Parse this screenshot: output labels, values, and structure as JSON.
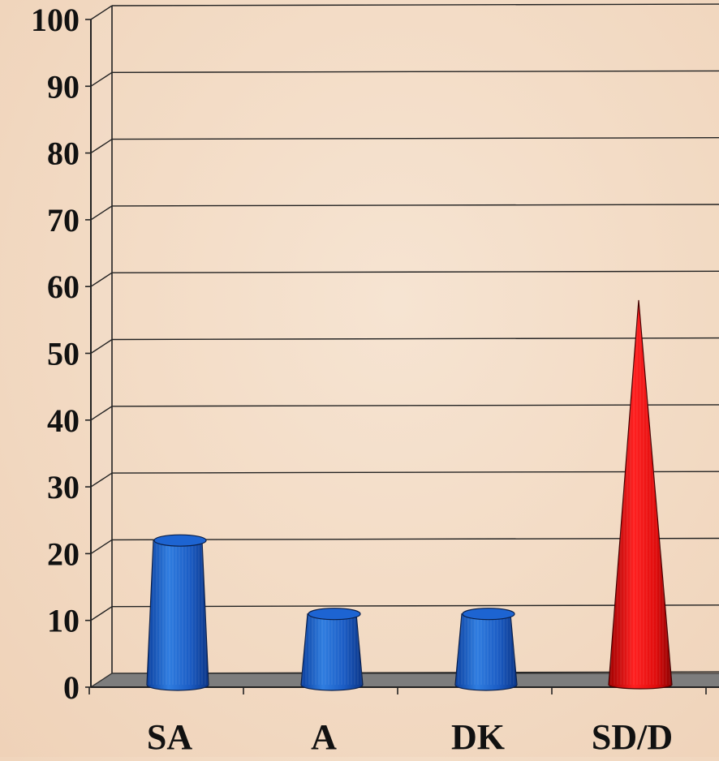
{
  "chart_data": {
    "type": "bar",
    "title": "",
    "xlabel": "",
    "ylabel": "",
    "categories": [
      "SA",
      "A",
      "DK",
      "SD/D"
    ],
    "values": [
      21,
      10,
      10,
      57
    ],
    "ylim": [
      0,
      100
    ],
    "yticks": [
      "0",
      "10",
      "20",
      "30",
      "40",
      "50",
      "60",
      "70",
      "80",
      "90",
      "100"
    ],
    "grid": true,
    "bar_shapes": [
      "cylinder",
      "cylinder",
      "cylinder",
      "cone"
    ],
    "bar_colors": [
      "#1f5fc8",
      "#1f5fc8",
      "#1f5fc8",
      "#e0141a"
    ]
  }
}
